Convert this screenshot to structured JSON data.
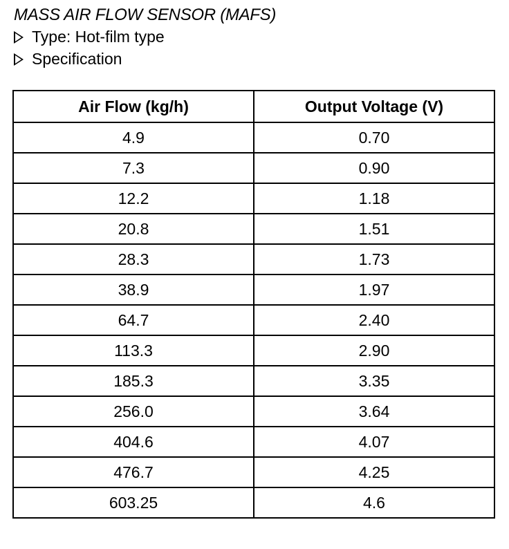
{
  "title": "MASS AIR FLOW SENSOR (MAFS)",
  "bullets": [
    "Type: Hot-film type",
    "Specification"
  ],
  "table": {
    "headers": [
      "Air Flow (kg/h)",
      "Output Voltage (V)"
    ],
    "rows": [
      [
        "4.9",
        "0.70"
      ],
      [
        "7.3",
        "0.90"
      ],
      [
        "12.2",
        "1.18"
      ],
      [
        "20.8",
        "1.51"
      ],
      [
        "28.3",
        "1.73"
      ],
      [
        "38.9",
        "1.97"
      ],
      [
        "64.7",
        "2.40"
      ],
      [
        "113.3",
        "2.90"
      ],
      [
        "185.3",
        "3.35"
      ],
      [
        "256.0",
        "3.64"
      ],
      [
        "404.6",
        "4.07"
      ],
      [
        "476.7",
        "4.25"
      ],
      [
        "603.25",
        "4.6"
      ]
    ]
  }
}
